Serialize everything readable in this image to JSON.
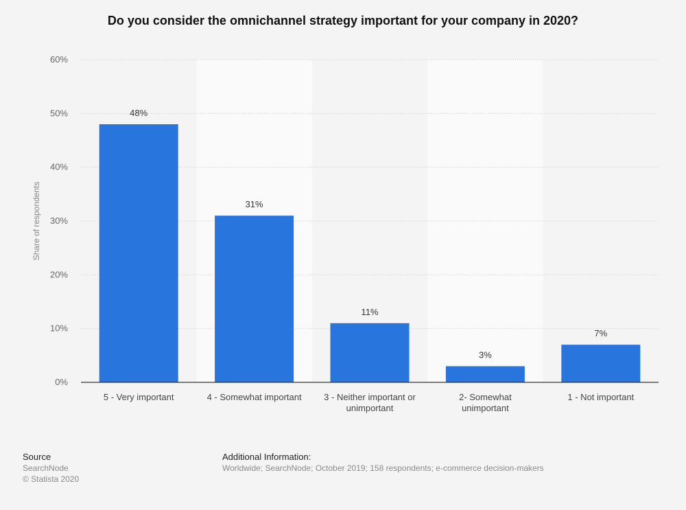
{
  "title": "Do you consider the omnichannel strategy important for your company in 2020?",
  "chart_data": {
    "type": "bar",
    "categories": [
      "5 - Very important",
      "4 - Somewhat important",
      "3 - Neither important or unimportant",
      "2- Somewhat unimportant",
      "1 - Not important"
    ],
    "category_lines": [
      [
        "5 - Very important"
      ],
      [
        "4 - Somewhat important"
      ],
      [
        "3 - Neither important or",
        "unimportant"
      ],
      [
        "2- Somewhat",
        "unimportant"
      ],
      [
        "1 - Not important"
      ]
    ],
    "values": [
      48,
      31,
      11,
      3,
      7
    ],
    "data_labels": [
      "48%",
      "31%",
      "11%",
      "3%",
      "7%"
    ],
    "ylabel": "Share of respondents",
    "ylim": [
      0,
      60
    ],
    "yticks": [
      0,
      10,
      20,
      30,
      40,
      50,
      60
    ],
    "ytick_labels": [
      "0%",
      "10%",
      "20%",
      "30%",
      "40%",
      "50%",
      "60%"
    ],
    "grid": true,
    "bar_color": "#2876dd"
  },
  "footer": {
    "source_heading": "Source",
    "source_name": "SearchNode",
    "copyright": "© Statista 2020",
    "info_heading": "Additional Information:",
    "info_text": "Worldwide; SearchNode; October 2019; 158 respondents; e-commerce decision-makers"
  }
}
